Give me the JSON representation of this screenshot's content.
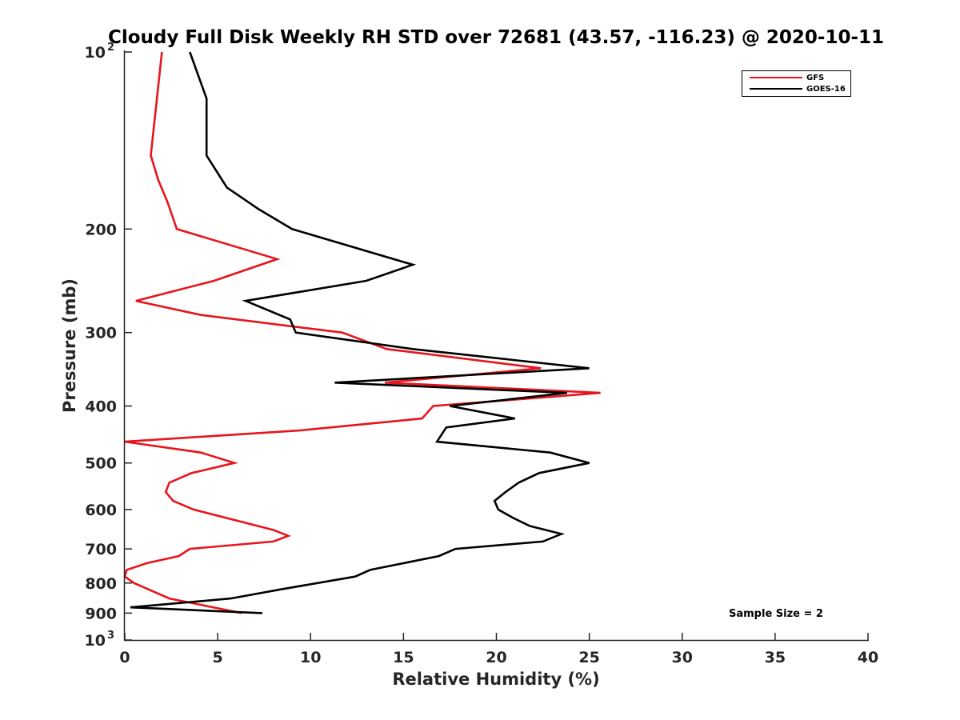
{
  "chart_data": {
    "type": "line",
    "title": "Cloudy Full Disk Weekly RH STD over 72681 (43.57, -116.23) @ 2020-10-11",
    "xlabel": "Relative Humidity (%)",
    "ylabel": "Pressure (mb)",
    "xlim": [
      0,
      40
    ],
    "ylim": [
      100,
      1000
    ],
    "y_scale": "log",
    "y_reversed": true,
    "grid": false,
    "legend_position": "top-right",
    "annotation": "Sample Size = 2",
    "x_ticks": [
      "0",
      "5",
      "10",
      "15",
      "20",
      "25",
      "30",
      "35",
      "40"
    ],
    "y_ticks": [
      {
        "value": 100,
        "label": "10",
        "sup": "2"
      },
      {
        "value": 200,
        "label": "200",
        "sup": ""
      },
      {
        "value": 300,
        "label": "300",
        "sup": ""
      },
      {
        "value": 400,
        "label": "400",
        "sup": ""
      },
      {
        "value": 500,
        "label": "500",
        "sup": ""
      },
      {
        "value": 600,
        "label": "600",
        "sup": ""
      },
      {
        "value": 700,
        "label": "700",
        "sup": ""
      },
      {
        "value": 800,
        "label": "800",
        "sup": ""
      },
      {
        "value": 900,
        "label": "900",
        "sup": ""
      },
      {
        "value": 1000,
        "label": "10",
        "sup": "3"
      }
    ],
    "series": [
      {
        "name": "GFS",
        "color": "#e8141c",
        "rh": [
          2.0,
          1.4,
          1.8,
          2.3,
          2.8,
          8.2,
          4.8,
          0.6,
          4.1,
          11.7,
          14.1,
          22.4,
          14.0,
          25.6,
          16.6,
          16.0,
          9.5,
          0.0,
          4.1,
          5.9,
          3.6,
          2.4,
          2.2,
          2.6,
          3.7,
          8.0,
          8.8,
          8.0,
          3.5,
          2.9,
          1.2,
          0.1,
          0.0,
          0.5,
          2.4,
          6.3
        ],
        "pressure": [
          100,
          150,
          165,
          180,
          200,
          225,
          245,
          265,
          280,
          300,
          320,
          345,
          365,
          380,
          400,
          420,
          440,
          460,
          480,
          500,
          520,
          540,
          560,
          580,
          600,
          650,
          665,
          680,
          700,
          720,
          740,
          760,
          780,
          800,
          850,
          900
        ]
      },
      {
        "name": "GOES-16",
        "color": "#000000",
        "rh": [
          3.5,
          4.4,
          4.4,
          5.5,
          7.2,
          9.0,
          15.5,
          13.0,
          6.5,
          8.9,
          9.2,
          15.5,
          25.0,
          11.3,
          23.8,
          17.5,
          21.0,
          17.3,
          16.8,
          22.9,
          25.0,
          22.3,
          21.2,
          20.5,
          19.9,
          20.1,
          20.9,
          21.8,
          23.5,
          22.5,
          17.8,
          16.9,
          13.2,
          12.4,
          8.4,
          5.7,
          0.3,
          7.4
        ],
        "pressure": [
          100,
          120,
          150,
          170,
          185,
          200,
          230,
          245,
          265,
          285,
          300,
          320,
          345,
          365,
          380,
          400,
          420,
          435,
          460,
          480,
          500,
          520,
          540,
          560,
          580,
          600,
          620,
          640,
          660,
          680,
          700,
          720,
          760,
          780,
          820,
          850,
          880,
          900
        ]
      }
    ]
  }
}
